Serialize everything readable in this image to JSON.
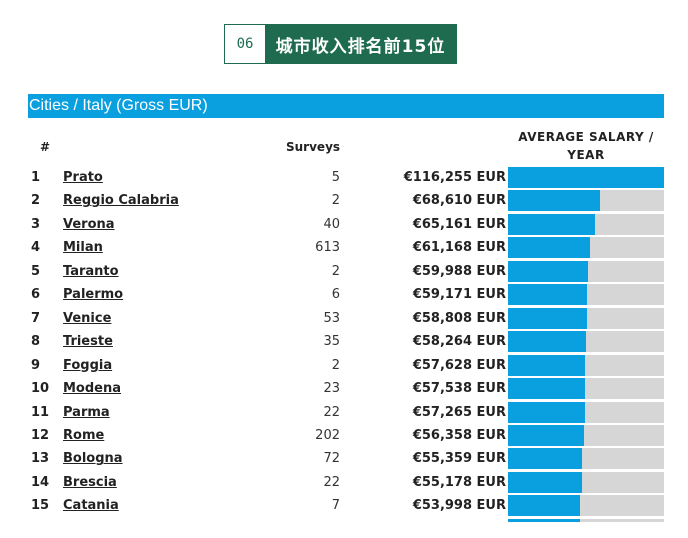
{
  "badge": {
    "number": "06",
    "title": "城市收入排名前15位"
  },
  "table_title": "Cities / Italy (Gross EUR)",
  "columns": {
    "rank": "#",
    "surveys": "Surveys",
    "salary": "AVERAGE SALARY / YEAR"
  },
  "chart_data": {
    "type": "bar",
    "title": "Cities / Italy (Gross EUR)",
    "categories": [
      "Prato",
      "Reggio Calabria",
      "Verona",
      "Milan",
      "Taranto",
      "Palermo",
      "Venice",
      "Trieste",
      "Foggia",
      "Modena",
      "Parma",
      "Rome",
      "Bologna",
      "Brescia",
      "Catania"
    ],
    "ranks": [
      "1",
      "2",
      "3",
      "4",
      "5",
      "6",
      "7",
      "8",
      "9",
      "10",
      "11",
      "12",
      "13",
      "14",
      "15"
    ],
    "surveys": [
      "5",
      "2",
      "40",
      "613",
      "2",
      "6",
      "53",
      "35",
      "2",
      "23",
      "22",
      "202",
      "72",
      "22",
      "7"
    ],
    "salary_labels": [
      "€116,255 EUR",
      "€68,610 EUR",
      "€65,161 EUR",
      "€61,168 EUR",
      "€59,988 EUR",
      "€59,171 EUR",
      "€58,808 EUR",
      "€58,264 EUR",
      "€57,628 EUR",
      "€57,538 EUR",
      "€57,265 EUR",
      "€56,358 EUR",
      "€55,359 EUR",
      "€55,178 EUR",
      "€53,998 EUR"
    ],
    "values": [
      116255,
      68610,
      65161,
      61168,
      59988,
      59171,
      58808,
      58264,
      57628,
      57538,
      57265,
      56358,
      55359,
      55178,
      53998
    ],
    "xlim": [
      0,
      116255
    ],
    "ylabel": "AVERAGE SALARY / YEAR",
    "bar_color": "#0aa0e0",
    "track_color": "#d6d6d6"
  },
  "colors": {
    "accent": "#0aa0e0",
    "badge_green": "#1e6b50"
  }
}
